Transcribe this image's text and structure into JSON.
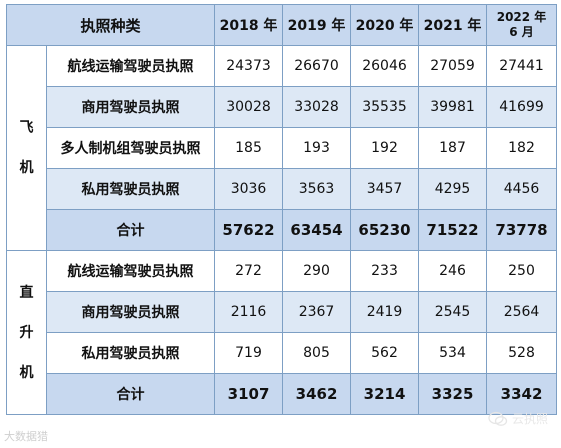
{
  "header": {
    "license_type": "执照种类",
    "years": [
      "2018 年",
      "2019 年",
      "2020 年",
      "2021 年"
    ],
    "last_year_line1": "2022 年",
    "last_year_line2": "6 月"
  },
  "sections": [
    {
      "category_chars": [
        "飞",
        "机"
      ],
      "rows": [
        {
          "label": "航线运输驾驶员执照",
          "values": [
            "24373",
            "26670",
            "26046",
            "27059",
            "27441"
          ]
        },
        {
          "label": "商用驾驶员执照",
          "values": [
            "30028",
            "33028",
            "35535",
            "39981",
            "41699"
          ]
        },
        {
          "label": "多人制机组驾驶员执照",
          "values": [
            "185",
            "193",
            "192",
            "187",
            "182"
          ]
        },
        {
          "label": "私用驾驶员执照",
          "values": [
            "3036",
            "3563",
            "3457",
            "4295",
            "4456"
          ]
        }
      ],
      "total": {
        "label": "合计",
        "values": [
          "57622",
          "63454",
          "65230",
          "71522",
          "73778"
        ]
      }
    },
    {
      "category_chars": [
        "直",
        "升",
        "机"
      ],
      "rows": [
        {
          "label": "航线运输驾驶员执照",
          "values": [
            "272",
            "290",
            "233",
            "246",
            "250"
          ]
        },
        {
          "label": "商用驾驶员执照",
          "values": [
            "2116",
            "2367",
            "2419",
            "2545",
            "2564"
          ]
        },
        {
          "label": "私用驾驶员执照",
          "values": [
            "719",
            "805",
            "562",
            "534",
            "528"
          ]
        }
      ],
      "total": {
        "label": "合计",
        "values": [
          "3107",
          "3462",
          "3214",
          "3325",
          "3342"
        ]
      }
    }
  ],
  "watermarks": {
    "left": "大数据猎",
    "right": "云执照"
  }
}
